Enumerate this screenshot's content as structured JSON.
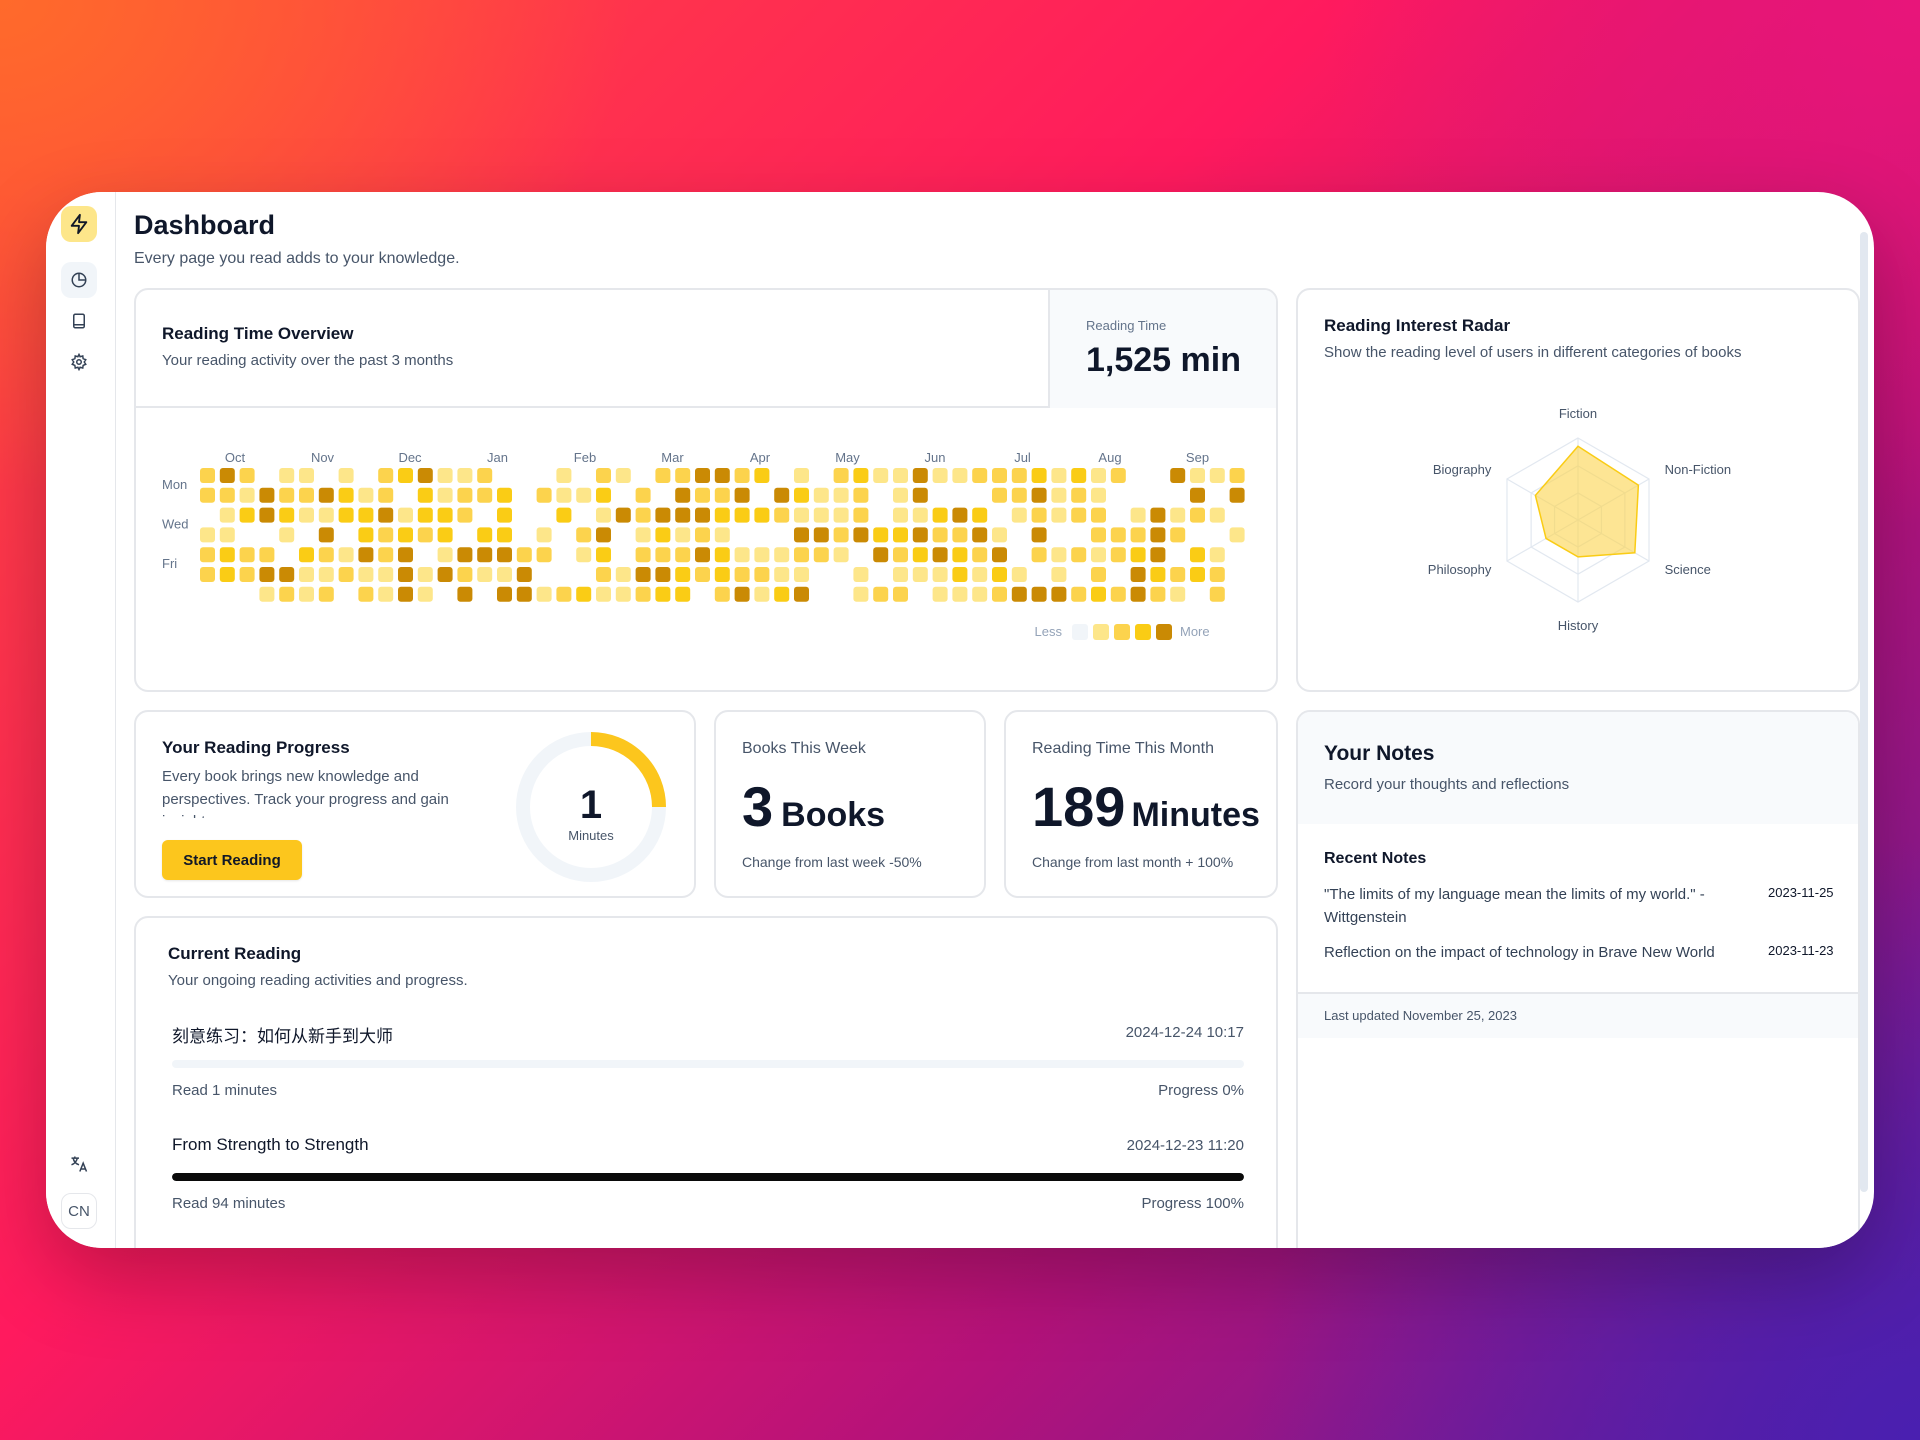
{
  "page": {
    "title": "Dashboard",
    "subtitle": "Every page you read adds to your knowledge."
  },
  "sidebar": {
    "items": [
      {
        "icon": "bolt-icon",
        "active": false
      },
      {
        "icon": "pie-chart-icon",
        "active": true
      },
      {
        "icon": "book-icon",
        "active": false
      },
      {
        "icon": "gear-icon",
        "active": false
      }
    ],
    "translate_icon": "translate-icon",
    "language": "CN"
  },
  "reading_overview": {
    "title": "Reading Time Overview",
    "subtitle": "Your reading activity over the past 3 months",
    "stat_label": "Reading Time",
    "stat_value": "1,525 min",
    "months": [
      "Oct",
      "Nov",
      "Dec",
      "Jan",
      "Feb",
      "Mar",
      "Apr",
      "May",
      "Jun",
      "Jul",
      "Aug",
      "Sep"
    ],
    "day_labels": [
      "Mon",
      "Wed",
      "Fri"
    ],
    "legend_less": "Less",
    "legend_more": "More",
    "colors": [
      "#f1f5f9",
      "#fde68a",
      "#fcd34d",
      "#facc15",
      "#ca8a04"
    ]
  },
  "radar": {
    "title": "Reading Interest Radar",
    "subtitle": "Show the reading level of users in different categories of books",
    "categories": [
      "Fiction",
      "Non-Fiction",
      "Science",
      "History",
      "Philosophy",
      "Biography"
    ],
    "values": [
      0.9,
      0.85,
      0.8,
      0.45,
      0.45,
      0.6
    ],
    "fill_color": "#fcd34d"
  },
  "progress": {
    "title": "Your Reading Progress",
    "subtitle": "Every book brings new knowledge and perspectives. Track your progress and gain insights.",
    "button": "Start Reading",
    "gauge_value": "1",
    "gauge_unit": "Minutes",
    "gauge_fraction": 0.25
  },
  "books_week": {
    "label": "Books This Week",
    "value": "3",
    "unit": "Books",
    "change": "Change from last week -50%"
  },
  "minutes_month": {
    "label": "Reading Time This Month",
    "value": "189",
    "unit": "Minutes",
    "change": "Change from last month + 100%"
  },
  "notes": {
    "title": "Your Notes",
    "subtitle": "Record your thoughts and reflections",
    "recent_label": "Recent Notes",
    "items": [
      {
        "text": "\"The limits of my language mean the limits of my world.\" - Wittgenstein",
        "date": "2023-11-25"
      },
      {
        "text": "Reflection on the impact of technology in Brave New World",
        "date": "2023-11-23"
      }
    ],
    "updated": "Last updated November 25, 2023"
  },
  "current_reading": {
    "title": "Current Reading",
    "subtitle": "Your ongoing reading activities and progress.",
    "books": [
      {
        "title": "刻意练习：如何从新手到大师",
        "timestamp": "2024-12-24 10:17",
        "read": "Read 1 minutes",
        "progress_label": "Progress 0%",
        "progress": 0
      },
      {
        "title": "From Strength to Strength",
        "timestamp": "2024-12-23 11:20",
        "read": "Read 94 minutes",
        "progress_label": "Progress 100%",
        "progress": 1
      }
    ]
  }
}
